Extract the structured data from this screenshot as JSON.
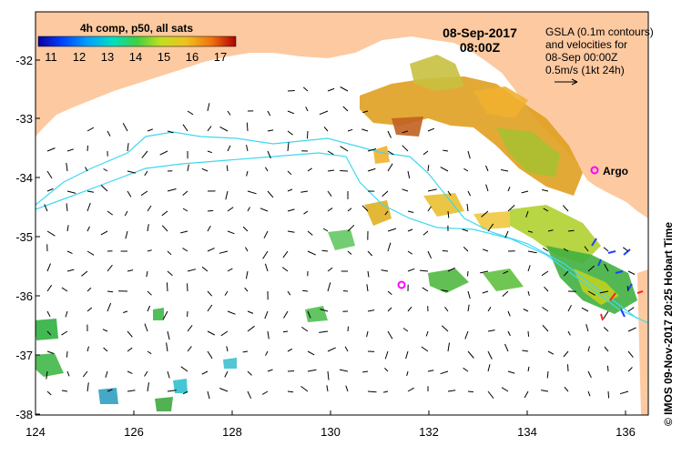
{
  "colorbar": {
    "title": "4h comp, p50, all sats",
    "ticks": [
      "11",
      "12",
      "13",
      "14",
      "15",
      "16",
      "17"
    ]
  },
  "header": {
    "date": "08-Sep-2017",
    "time": "08:00Z"
  },
  "legend": {
    "line1": "GSLA (0.1m contours)",
    "line2": "and velocities for",
    "line3": "08-Sep 00:00Z",
    "line4": "0.5m/s (1kt 24h)"
  },
  "argo_label": "Argo",
  "credit": "© IMOS 09-Nov-2017 20:25 Hobart Time",
  "axes": {
    "x_ticks": [
      "124",
      "126",
      "128",
      "130",
      "132",
      "134",
      "136"
    ],
    "y_ticks": [
      "-32",
      "-33",
      "-34",
      "-35",
      "-36",
      "-37",
      "-38"
    ]
  },
  "colors": {
    "land": "#fdc9a0",
    "ocean": "#ffffff",
    "contour": "#3fd8f0",
    "argo": "#ff00ff"
  }
}
